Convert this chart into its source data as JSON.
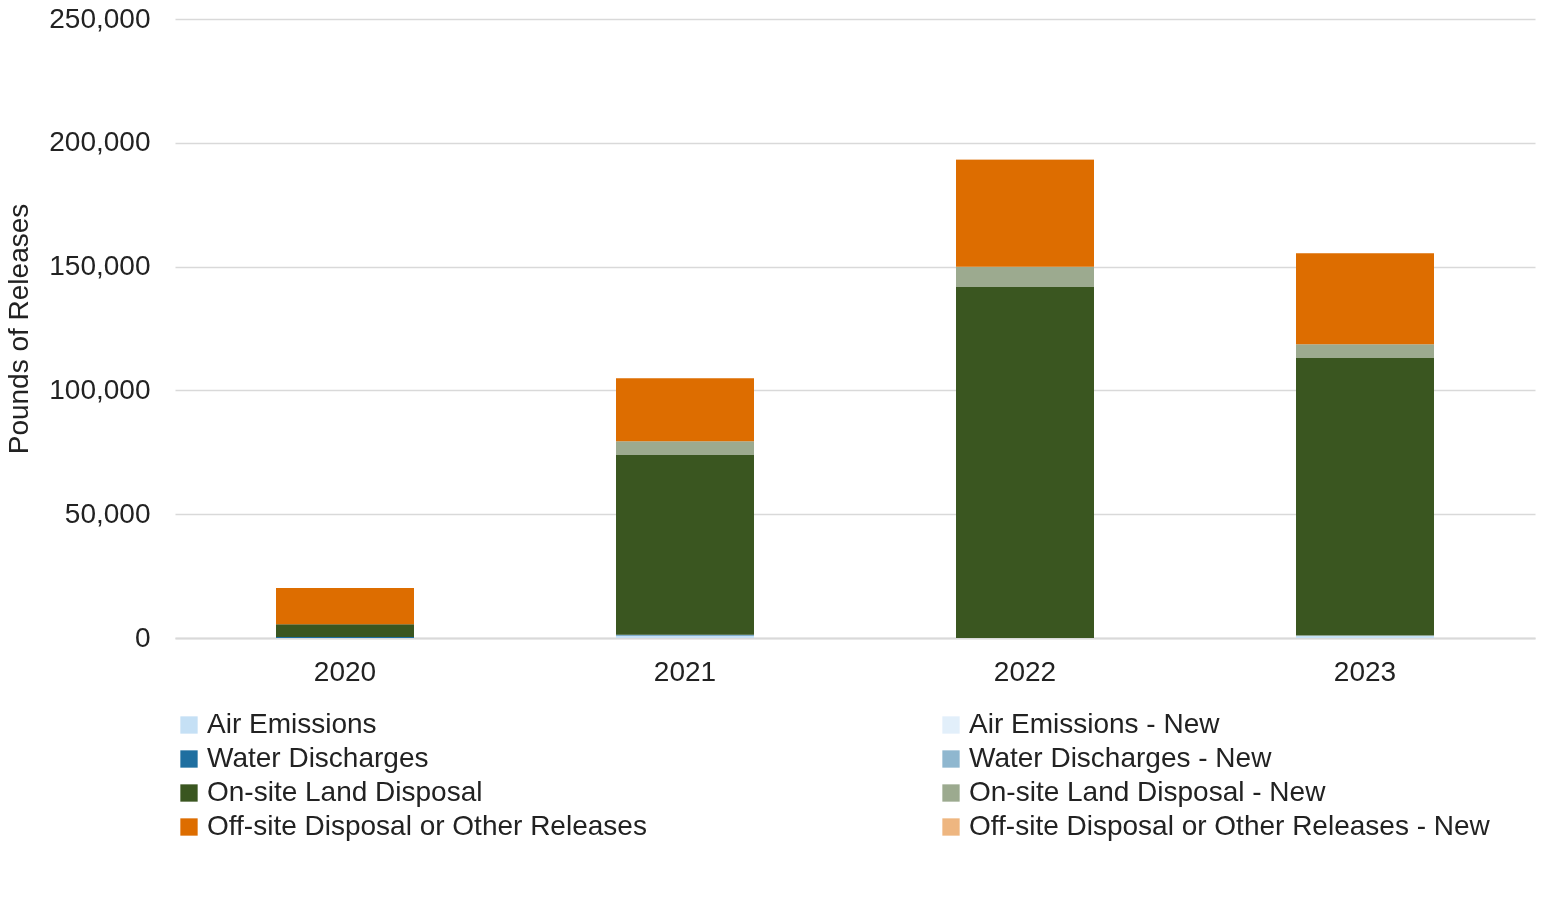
{
  "chart_data": {
    "type": "bar",
    "stacked": true,
    "ylabel": "Pounds of Releases",
    "categories": [
      "2020",
      "2021",
      "2022",
      "2023"
    ],
    "series": [
      {
        "name": "Air Emissions",
        "color": "#c5e0f5",
        "values": [
          0,
          1000,
          null,
          1000
        ]
      },
      {
        "name": "Air Emissions - New",
        "color": "#e2effa",
        "values": [
          0,
          0,
          0,
          0
        ]
      },
      {
        "name": "Water Discharges",
        "color": "#1f6fa0",
        "values": [
          400,
          300,
          0,
          0
        ]
      },
      {
        "name": "Water Discharges - New",
        "color": "#8fb7cf",
        "values": [
          0,
          0,
          0,
          0
        ]
      },
      {
        "name": "On-site Land Disposal",
        "color": "#3a5620",
        "values": [
          5200,
          72600,
          141800,
          112300
        ]
      },
      {
        "name": "On-site Land Disposal - New",
        "color": "#9caa8f",
        "values": [
          0,
          5600,
          8100,
          5300
        ]
      },
      {
        "name": "Off-site Disposal or Other Releases",
        "color": "#dd6d00",
        "values": [
          14600,
          25400,
          43200,
          36800
        ]
      },
      {
        "name": "Off-site Disposal or Other Releases - New",
        "color": "#eeb680",
        "values": [
          0,
          0,
          300,
          null
        ]
      }
    ],
    "ylim": [
      0,
      250000
    ],
    "yticks": [
      0,
      {
        "value": 50000,
        "label": "50,000"
      },
      {
        "value": 100000,
        "label": "100,000"
      },
      {
        "value": 150000,
        "label": "150,000"
      },
      {
        "value": 200000,
        "label": "200,000"
      },
      {
        "value": 250000,
        "label": "250,000"
      }
    ],
    "grid": "y",
    "legend": "bottom"
  }
}
